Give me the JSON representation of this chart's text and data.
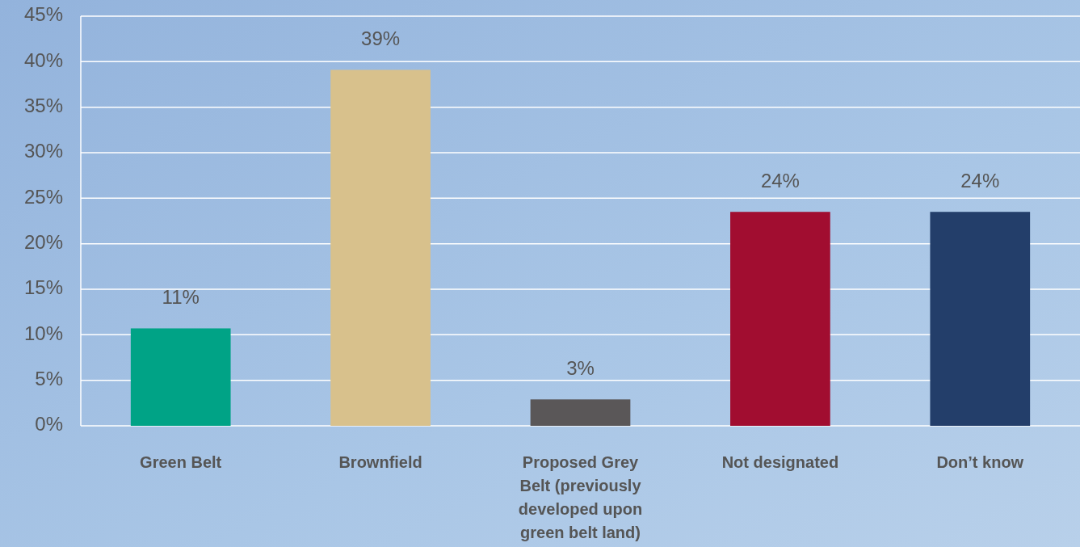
{
  "chart_data": {
    "type": "bar",
    "categories": [
      "Green Belt",
      "Brownfield",
      "Proposed Grey Belt (previously developed upon green belt land)",
      "Not designated",
      "Don’t know"
    ],
    "values": [
      10.7,
      39.1,
      2.9,
      23.5,
      23.5
    ],
    "value_labels": [
      "11%",
      "39%",
      "3%",
      "24%",
      "24%"
    ],
    "colors": [
      "#00a386",
      "#d8c18c",
      "#5a5758",
      "#a10d30",
      "#233e6a"
    ],
    "ylim": [
      0,
      45
    ],
    "yticks": [
      {
        "value": 0,
        "label": "0%"
      },
      {
        "value": 5,
        "label": "5%"
      },
      {
        "value": 10,
        "label": "10%"
      },
      {
        "value": 15,
        "label": "15%"
      },
      {
        "value": 20,
        "label": "20%"
      },
      {
        "value": 25,
        "label": "25%"
      },
      {
        "value": 30,
        "label": "30%"
      },
      {
        "value": 35,
        "label": "35%"
      },
      {
        "value": 40,
        "label": "40%"
      },
      {
        "value": 45,
        "label": "45%"
      }
    ],
    "grid": "y"
  }
}
